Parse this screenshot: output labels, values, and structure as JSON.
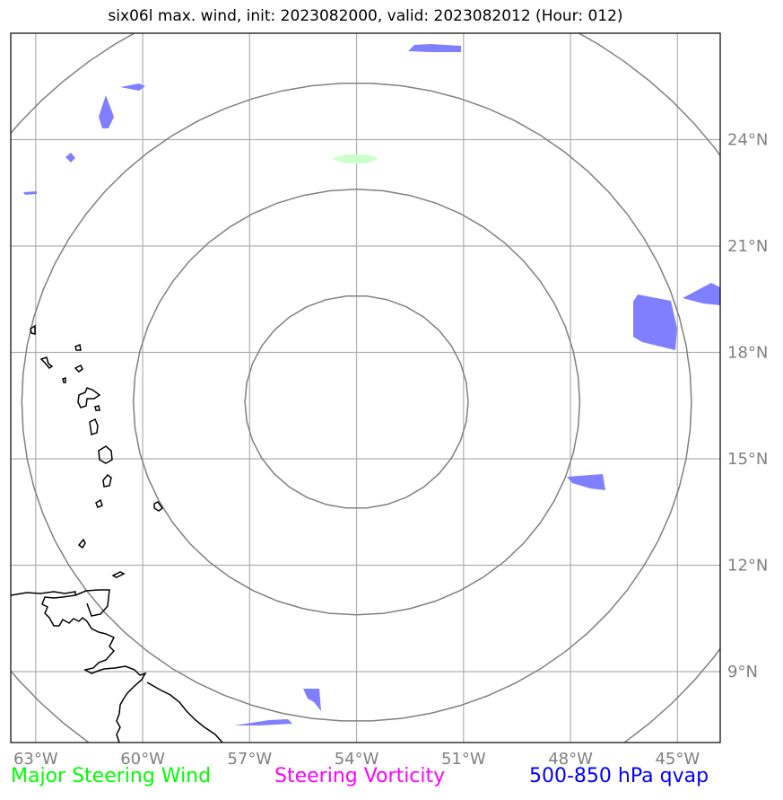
{
  "title": "six06l max. wind, init: 2023082000, valid: 2023082012 (Hour: 012)",
  "map": {
    "lon_range": [
      -63.7,
      -43.8
    ],
    "lat_range": [
      7.0,
      27.0
    ],
    "center": {
      "lon": -54.0,
      "lat": 16.6
    },
    "range_rings_deg": [
      3,
      6,
      9,
      12
    ],
    "lon_ticks": [
      {
        "value": -63,
        "label": "63°W"
      },
      {
        "value": -60,
        "label": "60°W"
      },
      {
        "value": -57,
        "label": "57°W"
      },
      {
        "value": -54,
        "label": "54°W"
      },
      {
        "value": -51,
        "label": "51°W"
      },
      {
        "value": -48,
        "label": "48°W"
      },
      {
        "value": -45,
        "label": "45°W"
      }
    ],
    "lat_ticks": [
      {
        "value": 24,
        "label": "24°N"
      },
      {
        "value": 21,
        "label": "21°N"
      },
      {
        "value": 18,
        "label": "18°N"
      },
      {
        "value": 15,
        "label": "15°N"
      },
      {
        "value": 12,
        "label": "12°N"
      },
      {
        "value": 9,
        "label": "9°N"
      }
    ],
    "colors": {
      "grid": "#b0b0b0",
      "rings": "#808080",
      "coast": "#000000",
      "qvap": "#7f7fff",
      "wind": "#ccffcc"
    }
  },
  "legend": {
    "steering_wind": {
      "label": "Major Steering Wind",
      "color": "#00ff00"
    },
    "steering_vorticity": {
      "label": "Steering Vorticity",
      "color": "#ff00ff"
    },
    "qvap": {
      "label": "500-850 hPa qvap",
      "color": "#0000ff"
    }
  }
}
